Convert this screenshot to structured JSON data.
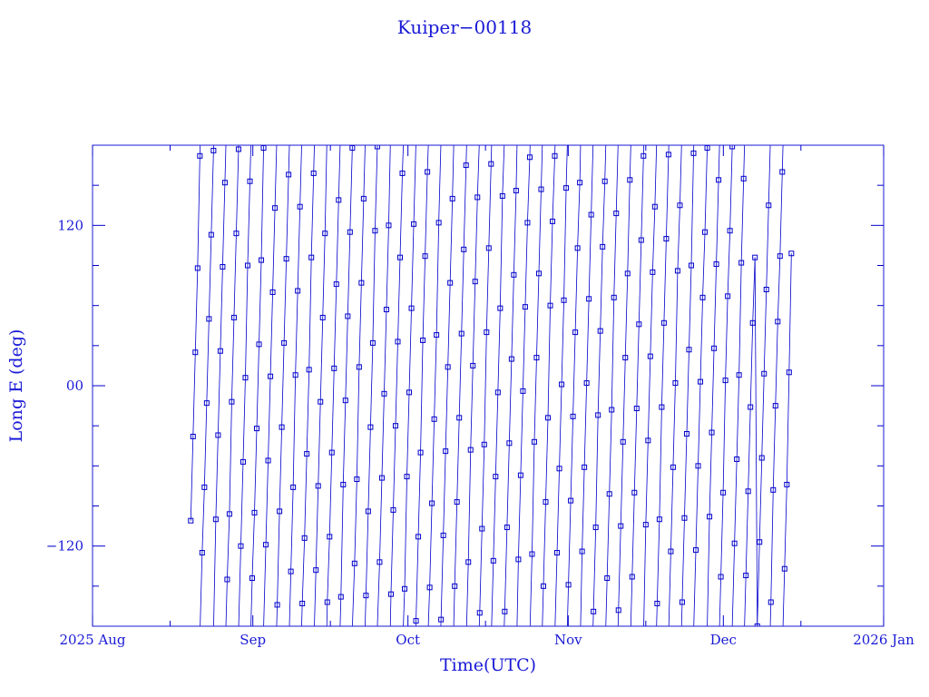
{
  "chart_data": {
    "type": "line",
    "title": "Kuiper−00118",
    "xlabel": "Time(UTC)",
    "ylabel": "Long E (deg)",
    "color": "#0000cc",
    "marker": "open-square",
    "grid": false,
    "x_range": [
      "2025-08-01",
      "2026-01-01"
    ],
    "ylim": [
      -180,
      180
    ],
    "x_ticks": [
      {
        "date": "2025-08-01",
        "label": "2025 Aug"
      },
      {
        "date": "2025-09-01",
        "label": "Sep"
      },
      {
        "date": "2025-10-01",
        "label": "Oct"
      },
      {
        "date": "2025-11-01",
        "label": "Nov"
      },
      {
        "date": "2025-12-01",
        "label": "Dec"
      },
      {
        "date": "2026-01-01",
        "label": "2026 Jan"
      }
    ],
    "y_ticks": [
      {
        "value": 120,
        "label": "120"
      },
      {
        "value": 0,
        "label": "00"
      },
      {
        "value": -120,
        "label": "−120"
      }
    ],
    "x_minor_ticks": [
      "2025-08-16",
      "2025-09-16",
      "2025-10-16",
      "2025-11-16",
      "2025-12-16"
    ],
    "y_minor_ticks": [
      -150,
      -90,
      -60,
      -30,
      30,
      60,
      90,
      150
    ],
    "series": [
      {
        "start": "2025-08-20",
        "end": "2025-12-14",
        "step_days": 0.44,
        "drift_deg_per_step": 63,
        "y_start": -101,
        "y_end": 99
      }
    ]
  }
}
